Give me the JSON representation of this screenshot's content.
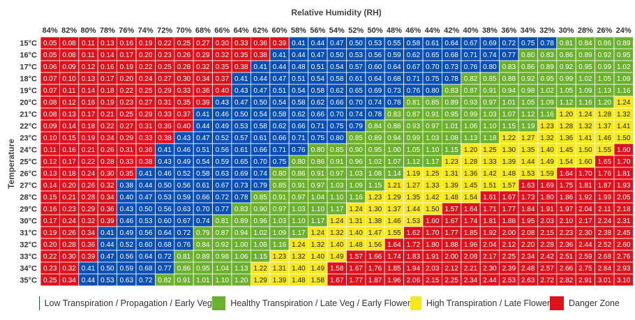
{
  "chart_data": {
    "type": "heatmap",
    "title": "",
    "xlabel": "Relative Humidity (RH)",
    "ylabel": "Temperature",
    "x": [
      "84%",
      "82%",
      "80%",
      "78%",
      "76%",
      "74%",
      "72%",
      "70%",
      "68%",
      "66%",
      "64%",
      "62%",
      "60%",
      "58%",
      "56%",
      "54%",
      "52%",
      "50%",
      "48%",
      "46%",
      "44%",
      "42%",
      "40%",
      "38%",
      "36%",
      "34%",
      "32%",
      "30%",
      "28%",
      "26%",
      "24%"
    ],
    "y": [
      "15°C",
      "16°C",
      "17°C",
      "18°C",
      "19°C",
      "20°C",
      "21°C",
      "22°C",
      "23°C",
      "24°C",
      "25°C",
      "26°C",
      "27°C",
      "28°C",
      "29°C",
      "30°C",
      "31°C",
      "32°C",
      "33°C",
      "34°C",
      "35°C"
    ],
    "values": [
      [
        "0.05",
        "0.08",
        "0.11",
        "0.13",
        "0.16",
        "0.19",
        "0.22",
        "0.25",
        "0.27",
        "0.30",
        "0.33",
        "0.36",
        "0.39",
        "0.41",
        "0.44",
        "0.47",
        "0.50",
        "0.53",
        "0.55",
        "0.58",
        "0.61",
        "0.64",
        "0.67",
        "0.69",
        "0.72",
        "0.75",
        "0.78",
        "0.81",
        "0.84",
        "0.86",
        "0.89"
      ],
      [
        "0.05",
        "0.08",
        "0.11",
        "0.14",
        "0.17",
        "0.20",
        "0.23",
        "0.26",
        "0.29",
        "0.32",
        "0.35",
        "0.38",
        "0.41",
        "0.44",
        "0.47",
        "0.50",
        "0.53",
        "0.56",
        "0.59",
        "0.62",
        "0.65",
        "0.68",
        "0.71",
        "0.74",
        "0.77",
        "0.80",
        "0.83",
        "0.86",
        "0.89",
        "0.92",
        "0.95"
      ],
      [
        "0.06",
        "0.09",
        "0.12",
        "0.16",
        "0.19",
        "0.22",
        "0.25",
        "0.28",
        "0.32",
        "0.35",
        "0.38",
        "0.41",
        "0.44",
        "0.48",
        "0.51",
        "0.54",
        "0.57",
        "0.60",
        "0.64",
        "0.67",
        "0.70",
        "0.73",
        "0.76",
        "0.80",
        "0.83",
        "0.86",
        "0.89",
        "0.92",
        "0.95",
        "0.99",
        "1.02"
      ],
      [
        "0.07",
        "0.10",
        "0.13",
        "0.17",
        "0.20",
        "0.24",
        "0.27",
        "0.30",
        "0.34",
        "0.37",
        "0.41",
        "0.44",
        "0.47",
        "0.51",
        "0.54",
        "0.58",
        "0.61",
        "0.64",
        "0.68",
        "0.71",
        "0.75",
        "0.78",
        "0.82",
        "0.85",
        "0.88",
        "0.92",
        "0.95",
        "0.99",
        "1.02",
        "1.05",
        "1.09"
      ],
      [
        "0.07",
        "0.11",
        "0.14",
        "0.18",
        "0.22",
        "0.25",
        "0.29",
        "0.33",
        "0.36",
        "0.40",
        "0.43",
        "0.47",
        "0.51",
        "0.54",
        "0.58",
        "0.62",
        "0.65",
        "0.69",
        "0.73",
        "0.76",
        "0.80",
        "0.83",
        "0.87",
        "0.91",
        "0.94",
        "0.98",
        "1.02",
        "1.05",
        "1.09",
        "1.13",
        "1.16"
      ],
      [
        "0.08",
        "0.12",
        "0.16",
        "0.19",
        "0.23",
        "0.27",
        "0.31",
        "0.35",
        "0.39",
        "0.43",
        "0.47",
        "0.50",
        "0.54",
        "0.58",
        "0.62",
        "0.66",
        "0.70",
        "0.74",
        "0.78",
        "0.81",
        "0.85",
        "0.89",
        "0.93",
        "0.97",
        "1.01",
        "1.05",
        "1.09",
        "1.12",
        "1.16",
        "1.20",
        "1.24"
      ],
      [
        "0.08",
        "0.13",
        "0.17",
        "0.21",
        "0.25",
        "0.29",
        "0.33",
        "0.37",
        "0.41",
        "0.46",
        "0.50",
        "0.54",
        "0.58",
        "0.62",
        "0.66",
        "0.70",
        "0.74",
        "0.78",
        "0.83",
        "0.87",
        "0.91",
        "0.95",
        "0.99",
        "1.03",
        "1.07",
        "1.12",
        "1.16",
        "1.20",
        "1.24",
        "1.28",
        "1.32"
      ],
      [
        "0.09",
        "0.14",
        "0.18",
        "0.22",
        "0.27",
        "0.31",
        "0.36",
        "0.40",
        "0.44",
        "0.49",
        "0.53",
        "0.58",
        "0.62",
        "0.66",
        "0.71",
        "0.75",
        "0.79",
        "0.84",
        "0.88",
        "0.93",
        "0.97",
        "1.01",
        "1.06",
        "1.10",
        "1.15",
        "1.19",
        "1.23",
        "1.28",
        "1.32",
        "1.37",
        "1.41"
      ],
      [
        "0.10",
        "0.15",
        "0.19",
        "0.24",
        "0.29",
        "0.33",
        "0.38",
        "0.43",
        "0.47",
        "0.52",
        "0.57",
        "0.61",
        "0.66",
        "0.71",
        "0.75",
        "0.80",
        "0.85",
        "0.89",
        "0.94",
        "0.99",
        "1.03",
        "1.08",
        "1.13",
        "1.18",
        "1.22",
        "1.27",
        "1.32",
        "1.36",
        "1.41",
        "1.46",
        "1.50"
      ],
      [
        "0.11",
        "0.16",
        "0.21",
        "0.26",
        "0.31",
        "0.36",
        "0.41",
        "0.46",
        "0.51",
        "0.56",
        "0.61",
        "0.66",
        "0.71",
        "0.76",
        "0.80",
        "0.85",
        "0.90",
        "0.95",
        "1.00",
        "1.05",
        "1.10",
        "1.15",
        "1.20",
        "1.25",
        "1.30",
        "1.35",
        "1.40",
        "1.45",
        "1.50",
        "1.55",
        "1.60"
      ],
      [
        "0.12",
        "0.17",
        "0.22",
        "0.28",
        "0.33",
        "0.38",
        "0.43",
        "0.49",
        "0.54",
        "0.59",
        "0.65",
        "0.70",
        "0.75",
        "0.80",
        "0.86",
        "0.91",
        "0.96",
        "1.02",
        "1.07",
        "1.12",
        "1.17",
        "1.23",
        "1.28",
        "1.33",
        "1.39",
        "1.44",
        "1.49",
        "1.54",
        "1.60",
        "1.65",
        "1.70"
      ],
      [
        "0.13",
        "0.18",
        "0.24",
        "0.30",
        "0.35",
        "0.41",
        "0.46",
        "0.52",
        "0.58",
        "0.63",
        "0.69",
        "0.74",
        "0.80",
        "0.86",
        "0.91",
        "0.97",
        "1.03",
        "1.08",
        "1.14",
        "1.19",
        "1.25",
        "1.31",
        "1.36",
        "1.42",
        "1.48",
        "1.53",
        "1.59",
        "1.64",
        "1.70",
        "1.76",
        "1.81"
      ],
      [
        "0.14",
        "0.20",
        "0.26",
        "0.32",
        "0.38",
        "0.44",
        "0.50",
        "0.56",
        "0.61",
        "0.67",
        "0.73",
        "0.79",
        "0.85",
        "0.91",
        "0.97",
        "1.03",
        "1.09",
        "1.15",
        "1.21",
        "1.27",
        "1.33",
        "1.39",
        "1.45",
        "1.51",
        "1.57",
        "1.63",
        "1.69",
        "1.75",
        "1.81",
        "1.87",
        "1.93"
      ],
      [
        "0.15",
        "0.21",
        "0.28",
        "0.34",
        "0.40",
        "0.47",
        "0.53",
        "0.59",
        "0.66",
        "0.72",
        "0.78",
        "0.85",
        "0.91",
        "0.97",
        "1.04",
        "1.10",
        "1.16",
        "1.23",
        "1.29",
        "1.35",
        "1.42",
        "1.48",
        "1.54",
        "1.61",
        "1.67",
        "1.73",
        "1.80",
        "1.86",
        "1.92",
        "1.99",
        "2.05"
      ],
      [
        "0.16",
        "0.23",
        "0.29",
        "0.36",
        "0.43",
        "0.50",
        "0.56",
        "0.63",
        "0.70",
        "0.77",
        "0.83",
        "0.90",
        "0.97",
        "1.03",
        "1.10",
        "1.17",
        "1.24",
        "1.30",
        "1.37",
        "1.44",
        "1.50",
        "1.57",
        "1.64",
        "1.71",
        "1.77",
        "1.84",
        "1.91",
        "1.97",
        "2.04",
        "2.11",
        "2.18"
      ],
      [
        "0.17",
        "0.24",
        "0.32",
        "0.39",
        "0.46",
        "0.53",
        "0.60",
        "0.67",
        "0.74",
        "0.81",
        "0.89",
        "0.96",
        "1.03",
        "1.10",
        "1.17",
        "1.24",
        "1.31",
        "1.38",
        "1.46",
        "1.53",
        "1.60",
        "1.67",
        "1.74",
        "1.81",
        "1.88",
        "1.95",
        "2.03",
        "2.10",
        "2.17",
        "2.24",
        "2.31"
      ],
      [
        "0.19",
        "0.26",
        "0.34",
        "0.41",
        "0.49",
        "0.56",
        "0.64",
        "0.72",
        "0.79",
        "0.87",
        "0.94",
        "1.02",
        "1.09",
        "1.17",
        "1.24",
        "1.32",
        "1.40",
        "1.47",
        "1.55",
        "1.62",
        "1.70",
        "1.77",
        "1.85",
        "1.92",
        "2.00",
        "2.08",
        "2.15",
        "2.23",
        "2.30",
        "2.38",
        "2.45"
      ],
      [
        "0.20",
        "0.28",
        "0.36",
        "0.44",
        "0.52",
        "0.60",
        "0.68",
        "0.76",
        "0.84",
        "0.92",
        "1.00",
        "1.08",
        "1.16",
        "1.24",
        "1.32",
        "1.40",
        "1.48",
        "1.56",
        "1.64",
        "1.72",
        "1.80",
        "1.88",
        "1.96",
        "2.04",
        "2.12",
        "2.20",
        "2.28",
        "2.36",
        "2.44",
        "2.52",
        "2.60"
      ],
      [
        "0.22",
        "0.30",
        "0.39",
        "0.47",
        "0.56",
        "0.64",
        "0.72",
        "0.81",
        "0.89",
        "0.98",
        "1.06",
        "1.15",
        "1.23",
        "1.32",
        "1.40",
        "1.49",
        "1.57",
        "1.66",
        "1.74",
        "1.83",
        "1.91",
        "2.00",
        "2.08",
        "2.17",
        "2.25",
        "2.34",
        "2.42",
        "2.51",
        "2.59",
        "2.68",
        "2.76"
      ],
      [
        "0.23",
        "0.32",
        "0.41",
        "0.50",
        "0.59",
        "0.68",
        "0.77",
        "0.86",
        "0.95",
        "1.04",
        "1.13",
        "1.22",
        "1.31",
        "1.40",
        "1.49",
        "1.58",
        "1.67",
        "1.76",
        "1.85",
        "1.94",
        "2.03",
        "2.12",
        "2.21",
        "2.30",
        "2.39",
        "2.48",
        "2.57",
        "2.66",
        "2.75",
        "2.84",
        "2.93"
      ],
      [
        "0.25",
        "0.34",
        "0.44",
        "0.53",
        "0.63",
        "0.72",
        "0.82",
        "0.91",
        "1.01",
        "1.10",
        "1.20",
        "1.29",
        "1.39",
        "1.48",
        "1.58",
        "1.67",
        "1.77",
        "1.87",
        "1.96",
        "2.06",
        "2.15",
        "2.25",
        "2.34",
        "2.44",
        "2.53",
        "2.63",
        "2.72",
        "2.82",
        "2.91",
        "3.01",
        "3.10"
      ]
    ],
    "zones": [
      [
        3,
        3,
        3,
        3,
        3,
        3,
        3,
        3,
        3,
        3,
        3,
        3,
        3,
        0,
        0,
        0,
        0,
        0,
        0,
        0,
        0,
        0,
        0,
        0,
        0,
        0,
        0,
        1,
        1,
        1,
        1
      ],
      [
        3,
        3,
        3,
        3,
        3,
        3,
        3,
        3,
        3,
        3,
        3,
        3,
        0,
        0,
        0,
        0,
        0,
        0,
        0,
        0,
        0,
        0,
        0,
        0,
        0,
        1,
        1,
        1,
        1,
        1,
        1
      ],
      [
        3,
        3,
        3,
        3,
        3,
        3,
        3,
        3,
        3,
        3,
        3,
        0,
        0,
        0,
        0,
        0,
        0,
        0,
        0,
        0,
        0,
        0,
        0,
        0,
        1,
        1,
        1,
        1,
        1,
        1,
        1
      ],
      [
        3,
        3,
        3,
        3,
        3,
        3,
        3,
        3,
        3,
        3,
        0,
        0,
        0,
        0,
        0,
        0,
        0,
        0,
        0,
        0,
        0,
        0,
        1,
        1,
        1,
        1,
        1,
        1,
        1,
        1,
        1
      ],
      [
        3,
        3,
        3,
        3,
        3,
        3,
        3,
        3,
        3,
        3,
        0,
        0,
        0,
        0,
        0,
        0,
        0,
        0,
        0,
        0,
        0,
        1,
        1,
        1,
        1,
        1,
        1,
        1,
        1,
        1,
        1
      ],
      [
        3,
        3,
        3,
        3,
        3,
        3,
        3,
        3,
        3,
        0,
        0,
        0,
        0,
        0,
        0,
        0,
        0,
        0,
        0,
        1,
        1,
        1,
        1,
        1,
        1,
        1,
        1,
        1,
        1,
        1,
        2
      ],
      [
        3,
        3,
        3,
        3,
        3,
        3,
        3,
        3,
        0,
        0,
        0,
        0,
        0,
        0,
        0,
        0,
        0,
        0,
        1,
        1,
        1,
        1,
        1,
        1,
        1,
        1,
        1,
        2,
        2,
        2,
        2
      ],
      [
        3,
        3,
        3,
        3,
        3,
        3,
        3,
        3,
        0,
        0,
        0,
        0,
        0,
        0,
        0,
        0,
        0,
        1,
        1,
        1,
        1,
        1,
        1,
        1,
        1,
        1,
        2,
        2,
        2,
        2,
        2
      ],
      [
        3,
        3,
        3,
        3,
        3,
        3,
        3,
        0,
        0,
        0,
        0,
        0,
        0,
        0,
        0,
        0,
        1,
        1,
        1,
        1,
        1,
        1,
        1,
        1,
        2,
        2,
        2,
        2,
        2,
        2,
        2
      ],
      [
        3,
        3,
        3,
        3,
        3,
        3,
        0,
        0,
        0,
        0,
        0,
        0,
        0,
        0,
        1,
        1,
        1,
        1,
        1,
        1,
        1,
        1,
        2,
        2,
        2,
        2,
        2,
        2,
        2,
        2,
        3
      ],
      [
        3,
        3,
        3,
        3,
        3,
        3,
        0,
        0,
        0,
        0,
        0,
        0,
        0,
        1,
        1,
        1,
        1,
        1,
        1,
        1,
        1,
        2,
        2,
        2,
        2,
        2,
        2,
        2,
        2,
        3,
        3
      ],
      [
        3,
        3,
        3,
        3,
        3,
        0,
        0,
        0,
        0,
        0,
        0,
        0,
        1,
        1,
        1,
        1,
        1,
        1,
        1,
        2,
        2,
        2,
        2,
        2,
        2,
        2,
        2,
        3,
        3,
        3,
        3
      ],
      [
        3,
        3,
        3,
        3,
        0,
        0,
        0,
        0,
        0,
        0,
        0,
        0,
        1,
        1,
        1,
        1,
        1,
        1,
        2,
        2,
        2,
        2,
        2,
        2,
        2,
        3,
        3,
        3,
        3,
        3,
        3
      ],
      [
        3,
        3,
        3,
        3,
        0,
        0,
        0,
        0,
        0,
        0,
        0,
        1,
        1,
        1,
        1,
        1,
        1,
        2,
        2,
        2,
        2,
        2,
        2,
        3,
        3,
        3,
        3,
        3,
        3,
        3,
        3
      ],
      [
        3,
        3,
        3,
        3,
        0,
        0,
        0,
        0,
        0,
        0,
        1,
        1,
        1,
        1,
        1,
        1,
        2,
        2,
        2,
        2,
        2,
        3,
        3,
        3,
        3,
        3,
        3,
        3,
        3,
        3,
        3
      ],
      [
        3,
        3,
        3,
        3,
        0,
        0,
        0,
        0,
        0,
        1,
        1,
        1,
        1,
        1,
        1,
        2,
        2,
        2,
        2,
        2,
        3,
        3,
        3,
        3,
        3,
        3,
        3,
        3,
        3,
        3,
        3
      ],
      [
        3,
        3,
        3,
        0,
        0,
        0,
        0,
        0,
        1,
        1,
        1,
        1,
        1,
        1,
        2,
        2,
        2,
        2,
        2,
        3,
        3,
        3,
        3,
        3,
        3,
        3,
        3,
        3,
        3,
        3,
        3
      ],
      [
        3,
        3,
        3,
        0,
        0,
        0,
        0,
        0,
        1,
        1,
        1,
        1,
        1,
        2,
        2,
        2,
        2,
        2,
        3,
        3,
        3,
        3,
        3,
        3,
        3,
        3,
        3,
        3,
        3,
        3,
        3
      ],
      [
        3,
        3,
        3,
        0,
        0,
        0,
        0,
        1,
        1,
        1,
        1,
        1,
        2,
        2,
        2,
        2,
        3,
        3,
        3,
        3,
        3,
        3,
        3,
        3,
        3,
        3,
        3,
        3,
        3,
        3,
        3
      ],
      [
        3,
        3,
        0,
        0,
        0,
        0,
        0,
        1,
        1,
        1,
        1,
        2,
        2,
        2,
        2,
        3,
        3,
        3,
        3,
        3,
        3,
        3,
        3,
        3,
        3,
        3,
        3,
        3,
        3,
        3,
        3
      ],
      [
        3,
        3,
        0,
        0,
        0,
        0,
        1,
        1,
        1,
        1,
        1,
        2,
        2,
        2,
        2,
        3,
        3,
        3,
        3,
        3,
        3,
        3,
        3,
        3,
        3,
        3,
        3,
        3,
        3,
        3,
        3
      ]
    ],
    "zone_colors": [
      "#0a4fb5",
      "#6cb12e",
      "#f7e81c",
      "#e0101c"
    ],
    "zone_text_colors": [
      "#ffffff",
      "#ffffff",
      "#222222",
      "#ffffff"
    ],
    "grid": true,
    "legend_position": "bottom"
  },
  "legend": {
    "items": [
      {
        "label": "Low Transpiration / Propagation / Early Veg",
        "color": "#0a4fb5"
      },
      {
        "label": "Healthy Transpiration / Late Veg / Early Flower",
        "color": "#6cb12e"
      },
      {
        "label": "High Transpiration / Late Flower",
        "color": "#f7e81c"
      },
      {
        "label": "Danger Zone",
        "color": "#e0101c"
      }
    ]
  }
}
